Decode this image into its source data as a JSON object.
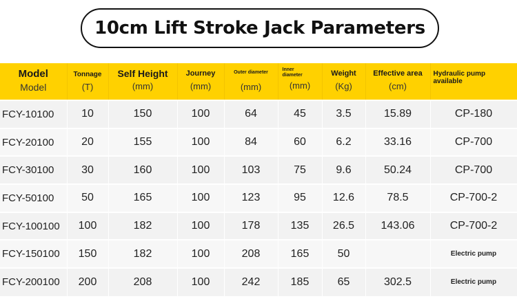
{
  "title": "10cm Lift Stroke Jack Parameters",
  "headers": [
    {
      "top": "Model",
      "bottom": "Model"
    },
    {
      "top": "Tonnage",
      "bottom": "(T)"
    },
    {
      "top": "Self Height",
      "bottom": "(mm)"
    },
    {
      "top": "Journey",
      "bottom": "(mm)"
    },
    {
      "top": "Outer diameter",
      "bottom": "(mm)"
    },
    {
      "top": "Inner diameter",
      "bottom": "(mm)"
    },
    {
      "top": "Weight",
      "bottom": "(Kg)"
    },
    {
      "top": "Effective area",
      "bottom": "(cm)"
    },
    {
      "top": "Hydraulic pump available",
      "bottom": ""
    }
  ],
  "rows": [
    [
      "FCY-10100",
      "10",
      "150",
      "100",
      "64",
      "45",
      "3.5",
      "15.89",
      "CP-180"
    ],
    [
      "FCY-20100",
      "20",
      "155",
      "100",
      "84",
      "60",
      "6.2",
      "33.16",
      "CP-700"
    ],
    [
      "FCY-30100",
      "30",
      "160",
      "100",
      "103",
      "75",
      "9.6",
      "50.24",
      "CP-700"
    ],
    [
      "FCY-50100",
      "50",
      "165",
      "100",
      "123",
      "95",
      "12.6",
      "78.5",
      "CP-700-2"
    ],
    [
      "FCY-100100",
      "100",
      "182",
      "100",
      "178",
      "135",
      "26.5",
      "143.06",
      "CP-700-2"
    ],
    [
      "FCY-150100",
      "150",
      "182",
      "100",
      "208",
      "165",
      "50",
      "",
      "Electric pump"
    ],
    [
      "FCY-200100",
      "200",
      "208",
      "100",
      "242",
      "185",
      "65",
      "302.5",
      "Electric pump"
    ]
  ]
}
